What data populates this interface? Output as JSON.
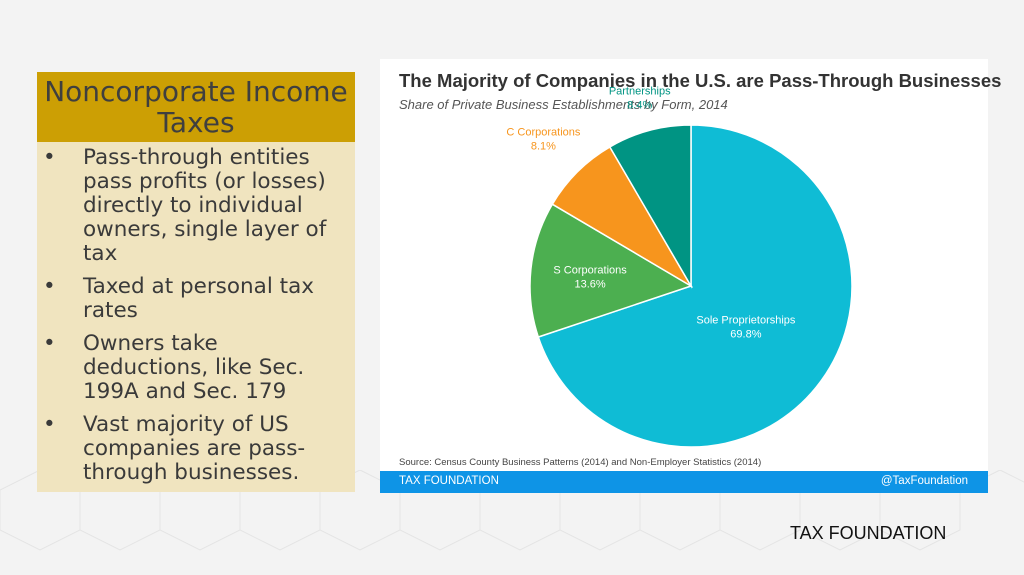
{
  "panel": {
    "title": "Noncorporate Income Taxes",
    "bullets": [
      "Pass-through entities pass profits (or losses) directly to individual owners, single layer of tax",
      "Taxed at personal tax rates",
      "Owners take deductions, like Sec. 199A and Sec. 179",
      "Vast majority of US companies are pass-through businesses."
    ],
    "bullet_glyph": "•"
  },
  "chart_data": {
    "type": "pie",
    "title": "The Majority of Companies in the U.S. are Pass-Through Businesses",
    "subtitle": "Share of Private Business Establishments by Form, 2014",
    "slices": [
      {
        "label": "Sole Proprietorships",
        "value": 69.8,
        "display": "69.8%",
        "color": "#0fbcd5"
      },
      {
        "label": "S Corporations",
        "value": 13.6,
        "display": "13.6%",
        "color": "#4caf50"
      },
      {
        "label": "C Corporations",
        "value": 8.1,
        "display": "8.1%",
        "color": "#f7951d"
      },
      {
        "label": "Partnerships",
        "value": 8.4,
        "display": "8.4%",
        "color": "#009483"
      }
    ],
    "source": "Source: Census County Business Patterns (2014) and Non-Employer Statistics (2014)"
  },
  "chart_footer": {
    "left": "TAX FOUNDATION",
    "right": "@TaxFoundation"
  },
  "brand": "TAX FOUNDATION"
}
